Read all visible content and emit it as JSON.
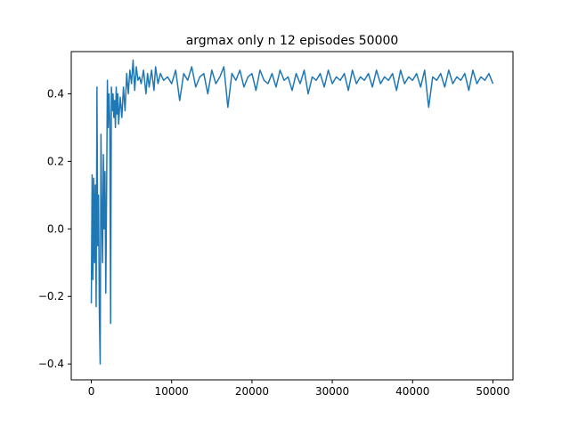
{
  "chart_data": {
    "type": "line",
    "title": "argmax only n 12 episodes 50000",
    "xlabel": "",
    "ylabel": "",
    "xlim": [
      -2500,
      52500
    ],
    "ylim": [
      -0.447,
      0.525
    ],
    "xticks": [
      0,
      10000,
      20000,
      30000,
      40000,
      50000
    ],
    "xtick_labels": [
      "0",
      "10000",
      "20000",
      "30000",
      "40000",
      "50000"
    ],
    "yticks": [
      -0.4,
      -0.2,
      0.0,
      0.2,
      0.4
    ],
    "ytick_labels": [
      "−0.4",
      "−0.2",
      "0.0",
      "0.2",
      "0.4"
    ],
    "grid": false,
    "legend": "none",
    "series": [
      {
        "color": "#1f77b4",
        "x": [
          0,
          100,
          200,
          300,
          400,
          500,
          600,
          700,
          800,
          900,
          1000,
          1100,
          1200,
          1300,
          1400,
          1500,
          1600,
          1700,
          1800,
          1900,
          2000,
          2100,
          2200,
          2300,
          2400,
          2500,
          2600,
          2700,
          2800,
          2900,
          3000,
          3100,
          3200,
          3300,
          3400,
          3600,
          3800,
          4000,
          4200,
          4400,
          4600,
          4800,
          5000,
          5200,
          5400,
          5600,
          5800,
          6000,
          6200,
          6500,
          6800,
          7000,
          7200,
          7500,
          7800,
          8000,
          8300,
          8600,
          9000,
          9500,
          10000,
          10500,
          11000,
          11500,
          12000,
          12500,
          13000,
          13500,
          14000,
          14500,
          15000,
          15500,
          16000,
          16500,
          17000,
          17500,
          18000,
          18500,
          19000,
          19500,
          20000,
          20500,
          21000,
          21500,
          22000,
          22500,
          23000,
          23500,
          24000,
          24500,
          25000,
          25500,
          26000,
          26500,
          27000,
          27500,
          28000,
          28500,
          29000,
          29500,
          30000,
          30500,
          31000,
          31500,
          32000,
          32500,
          33000,
          33500,
          34000,
          34500,
          35000,
          35500,
          36000,
          36500,
          37000,
          37500,
          38000,
          38500,
          39000,
          39500,
          40000,
          40500,
          41000,
          41500,
          42000,
          42500,
          43000,
          43500,
          44000,
          44500,
          45000,
          45500,
          46000,
          46500,
          47000,
          47500,
          48000,
          48500,
          49000,
          49500,
          50000
        ],
        "y": [
          -0.22,
          0.16,
          -0.15,
          0.15,
          -0.1,
          0.13,
          -0.23,
          0.42,
          -0.05,
          0.1,
          -0.25,
          -0.4,
          0.28,
          0.05,
          -0.1,
          0.22,
          0.0,
          0.17,
          -0.19,
          0.1,
          0.44,
          0.3,
          0.4,
          0.32,
          -0.28,
          0.42,
          0.35,
          0.4,
          0.33,
          0.38,
          0.3,
          0.42,
          0.34,
          0.4,
          0.31,
          0.39,
          0.33,
          0.42,
          0.35,
          0.46,
          0.4,
          0.47,
          0.43,
          0.5,
          0.41,
          0.48,
          0.44,
          0.45,
          0.43,
          0.47,
          0.4,
          0.46,
          0.42,
          0.47,
          0.41,
          0.48,
          0.43,
          0.46,
          0.44,
          0.45,
          0.43,
          0.47,
          0.38,
          0.46,
          0.44,
          0.48,
          0.42,
          0.45,
          0.46,
          0.4,
          0.47,
          0.43,
          0.45,
          0.48,
          0.36,
          0.46,
          0.44,
          0.47,
          0.42,
          0.45,
          0.46,
          0.41,
          0.47,
          0.44,
          0.43,
          0.46,
          0.42,
          0.47,
          0.44,
          0.45,
          0.41,
          0.46,
          0.43,
          0.47,
          0.4,
          0.45,
          0.44,
          0.46,
          0.42,
          0.47,
          0.43,
          0.45,
          0.44,
          0.46,
          0.41,
          0.47,
          0.43,
          0.45,
          0.44,
          0.46,
          0.42,
          0.47,
          0.43,
          0.45,
          0.44,
          0.46,
          0.41,
          0.47,
          0.43,
          0.45,
          0.44,
          0.46,
          0.42,
          0.47,
          0.36,
          0.45,
          0.44,
          0.46,
          0.42,
          0.47,
          0.43,
          0.45,
          0.44,
          0.46,
          0.41,
          0.47,
          0.43,
          0.45,
          0.44,
          0.46,
          0.43
        ]
      }
    ]
  }
}
